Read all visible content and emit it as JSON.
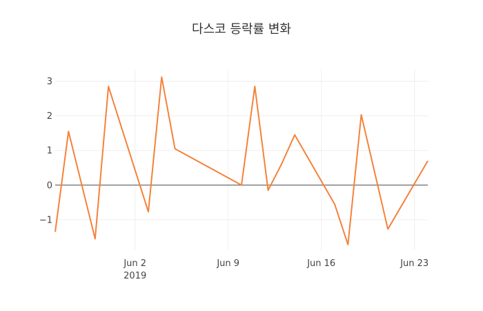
{
  "chart_data": {
    "type": "line",
    "title": "다스코 등락률 변화",
    "xlabel": "",
    "ylabel": "",
    "x_day_offsets": [
      0,
      1,
      3,
      4,
      7,
      8,
      9,
      14,
      15,
      16,
      17,
      18,
      21,
      22,
      23,
      25,
      28
    ],
    "x_dates": [
      "2019-05-27",
      "2019-05-28",
      "2019-05-30",
      "2019-05-31",
      "2019-06-03",
      "2019-06-04",
      "2019-06-05",
      "2019-06-10",
      "2019-06-11",
      "2019-06-12",
      "2019-06-13",
      "2019-06-14",
      "2019-06-17",
      "2019-06-18",
      "2019-06-19",
      "2019-06-21",
      "2019-06-24"
    ],
    "series": [
      {
        "name": "등락률",
        "color": "#f4813a",
        "values": [
          -1.35,
          1.55,
          -1.55,
          2.85,
          -0.77,
          3.12,
          1.05,
          0.0,
          2.85,
          -0.15,
          0.6,
          1.45,
          -0.55,
          -1.72,
          2.03,
          -1.27,
          0.7
        ]
      }
    ],
    "xlim_day_offsets": [
      0,
      28
    ],
    "ylim": [
      -1.88,
      3.35
    ],
    "y_ticks": [
      {
        "value": -1,
        "label": "−1"
      },
      {
        "value": 0,
        "label": "0"
      },
      {
        "value": 1,
        "label": "1"
      },
      {
        "value": 2,
        "label": "2"
      },
      {
        "value": 3,
        "label": "3"
      }
    ],
    "x_ticks": [
      {
        "day_offset": 6,
        "label": "Jun 2",
        "sublabel": "2019"
      },
      {
        "day_offset": 13,
        "label": "Jun 9",
        "sublabel": ""
      },
      {
        "day_offset": 20,
        "label": "Jun 16",
        "sublabel": ""
      },
      {
        "day_offset": 27,
        "label": "Jun 23",
        "sublabel": ""
      }
    ],
    "grid": true
  }
}
